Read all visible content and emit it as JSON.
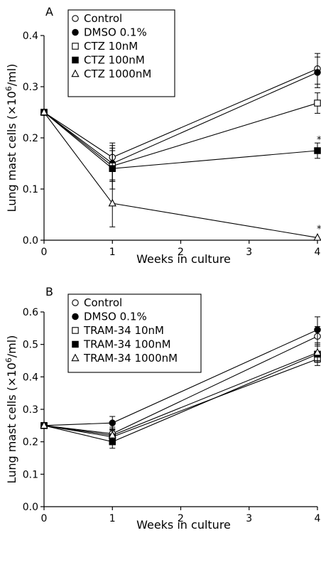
{
  "chart_data": [
    {
      "type": "line",
      "panel_label": "A",
      "xlabel": "Weeks in culture",
      "ylabel": "Lung mast cells (×10⁶/ml)",
      "ylabel_main": "Lung mast cells (×10",
      "ylabel_sup": "6",
      "ylabel_end": "/ml)",
      "xlim": [
        0,
        4
      ],
      "ylim": [
        0.0,
        0.4
      ],
      "x_ticks": [
        0,
        1,
        2,
        3,
        4
      ],
      "x_tick_labels": [
        "0",
        "1",
        "2",
        "3",
        "4"
      ],
      "y_ticks": [
        0.0,
        0.1,
        0.2,
        0.3,
        0.4
      ],
      "y_tick_labels": [
        "0.0",
        "0.1",
        "0.2",
        "0.3",
        "0.4"
      ],
      "grid": false,
      "legend_position": "top-left",
      "x": [
        0,
        1,
        4
      ],
      "series": [
        {
          "name": "Control",
          "marker": "open-circle",
          "values": [
            0.25,
            0.162,
            0.335
          ],
          "errors": [
            0.004,
            0.028,
            0.03
          ]
        },
        {
          "name": "DMSO 0.1%",
          "marker": "filled-circle",
          "values": [
            0.25,
            0.15,
            0.328
          ],
          "errors": [
            0.004,
            0.035,
            0.03
          ]
        },
        {
          "name": "CTZ 10nM",
          "marker": "open-square",
          "values": [
            0.25,
            0.145,
            0.268
          ],
          "errors": [
            0.004,
            0.03,
            0.02
          ]
        },
        {
          "name": "CTZ 100nM",
          "marker": "filled-square",
          "values": [
            0.25,
            0.14,
            0.175
          ],
          "errors": [
            0.004,
            0.04,
            0.015
          ]
        },
        {
          "name": "CTZ 1000nM",
          "marker": "open-triangle",
          "values": [
            0.25,
            0.072,
            0.005
          ],
          "errors": [
            0.004,
            0.046,
            0.004
          ]
        }
      ],
      "annotations": [
        {
          "text": "*",
          "x": 4,
          "y": 0.19
        },
        {
          "text": "*",
          "x": 4,
          "y": 0.016
        }
      ]
    },
    {
      "type": "line",
      "panel_label": "B",
      "xlabel": "Weeks in culture",
      "ylabel": "Lung mast cells (×10⁶/ml)",
      "ylabel_main": "Lung mast cells (×10",
      "ylabel_sup": "6",
      "ylabel_end": "/ml)",
      "xlim": [
        0,
        4
      ],
      "ylim": [
        0.0,
        0.6
      ],
      "x_ticks": [
        0,
        1,
        2,
        3,
        4
      ],
      "x_tick_labels": [
        "0",
        "1",
        "2",
        "3",
        "4"
      ],
      "y_ticks": [
        0.0,
        0.1,
        0.2,
        0.3,
        0.4,
        0.5,
        0.6
      ],
      "y_tick_labels": [
        "0.0",
        "0.1",
        "0.2",
        "0.3",
        "0.4",
        "0.5",
        "0.6"
      ],
      "grid": false,
      "legend_position": "top-left",
      "x": [
        0,
        1,
        4
      ],
      "series": [
        {
          "name": "Control",
          "marker": "open-circle",
          "values": [
            0.25,
            0.225,
            0.525
          ],
          "errors": [
            0.004,
            0.02,
            0.03
          ]
        },
        {
          "name": "DMSO 0.1%",
          "marker": "filled-circle",
          "values": [
            0.25,
            0.258,
            0.545
          ],
          "errors": [
            0.004,
            0.02,
            0.04
          ]
        },
        {
          "name": "TRAM-34 10nM",
          "marker": "open-square",
          "values": [
            0.25,
            0.215,
            0.455
          ],
          "errors": [
            0.004,
            0.02,
            0.02
          ]
        },
        {
          "name": "TRAM-34 100nM",
          "marker": "filled-square",
          "values": [
            0.25,
            0.2,
            0.47
          ],
          "errors": [
            0.004,
            0.02,
            0.025
          ]
        },
        {
          "name": "TRAM-34 1000nM",
          "marker": "open-triangle",
          "values": [
            0.25,
            0.22,
            0.475
          ],
          "errors": [
            0.004,
            0.02,
            0.025
          ]
        }
      ],
      "annotations": []
    }
  ]
}
